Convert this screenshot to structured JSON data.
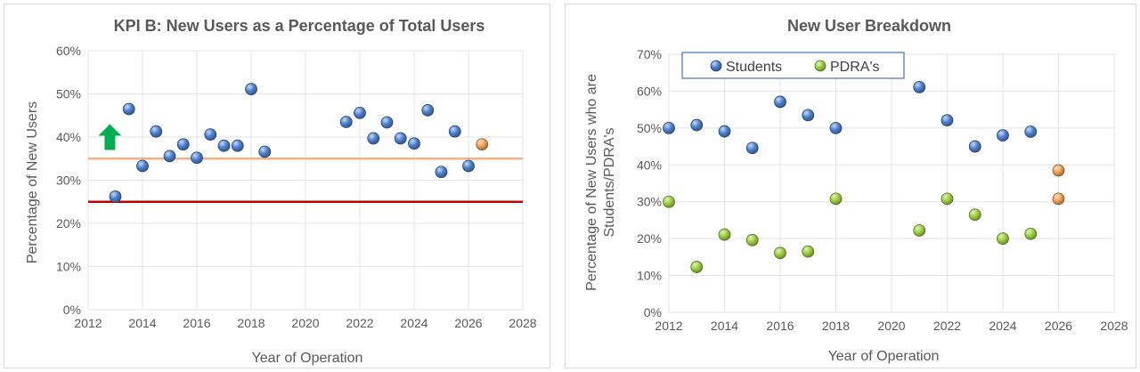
{
  "chart_data": [
    {
      "type": "scatter",
      "title": "KPI B: New Users as a Percentage of Total Users",
      "xlabel": "Year of Operation",
      "ylabel": "Percentage of New Users",
      "xlim": [
        2012,
        2028
      ],
      "ylim": [
        0,
        0.6
      ],
      "xticks": [
        "2012",
        "2014",
        "2016",
        "2018",
        "2020",
        "2022",
        "2024",
        "2026",
        "2028"
      ],
      "yticks": [
        "0%",
        "10%",
        "20%",
        "30%",
        "40%",
        "50%",
        "60%"
      ],
      "grid": true,
      "series": [
        {
          "color": "#4a7fd0",
          "points": [
            [
              2013.0,
              0.262
            ],
            [
              2013.5,
              0.465
            ],
            [
              2014.0,
              0.333
            ],
            [
              2014.5,
              0.413
            ],
            [
              2015.0,
              0.356
            ],
            [
              2015.5,
              0.383
            ],
            [
              2016.0,
              0.352
            ],
            [
              2016.5,
              0.406
            ],
            [
              2017.0,
              0.38
            ],
            [
              2017.5,
              0.38
            ],
            [
              2018.0,
              0.511
            ],
            [
              2018.5,
              0.366
            ],
            [
              2021.5,
              0.435
            ],
            [
              2022.0,
              0.456
            ],
            [
              2022.5,
              0.397
            ],
            [
              2023.0,
              0.434
            ],
            [
              2023.5,
              0.397
            ],
            [
              2024.0,
              0.385
            ],
            [
              2024.5,
              0.462
            ],
            [
              2025.0,
              0.319
            ],
            [
              2025.5,
              0.413
            ],
            [
              2026.0,
              0.333
            ]
          ]
        },
        {
          "color": "#f0a050",
          "points": [
            [
              2026.5,
              0.383
            ]
          ]
        }
      ],
      "reference_lines": [
        {
          "y": 0.35,
          "color": "#f4b183"
        },
        {
          "y": 0.25,
          "color": "#c00000"
        }
      ],
      "annotation": {
        "type": "up-arrow",
        "color": "#00b050",
        "x": 2012.8,
        "y_from": 0.37,
        "y_to": 0.43
      }
    },
    {
      "type": "scatter",
      "title": "New User Breakdown",
      "xlabel": "Year of Operation",
      "ylabel_lines": [
        "Percentage of New Users who are",
        "Students/PDRA's"
      ],
      "xlim": [
        2012,
        2028
      ],
      "ylim": [
        0,
        0.7
      ],
      "xticks": [
        "2012",
        "2014",
        "2016",
        "2018",
        "2020",
        "2022",
        "2024",
        "2026",
        "2028"
      ],
      "yticks": [
        "0%",
        "10%",
        "20%",
        "30%",
        "40%",
        "50%",
        "60%",
        "70%"
      ],
      "grid": true,
      "legend_position": "top-left",
      "series": [
        {
          "name": "Students",
          "color": "#4a7fd0",
          "points": [
            [
              2012,
              0.5
            ],
            [
              2013,
              0.508
            ],
            [
              2014,
              0.491
            ],
            [
              2015,
              0.446
            ],
            [
              2016,
              0.571
            ],
            [
              2017,
              0.535
            ],
            [
              2018,
              0.5
            ],
            [
              2021,
              0.611
            ],
            [
              2022,
              0.521
            ],
            [
              2023,
              0.45
            ],
            [
              2024,
              0.48
            ],
            [
              2025,
              0.49
            ]
          ]
        },
        {
          "name": "PDRA's",
          "color": "#9acd3c",
          "points": [
            [
              2012,
              0.3
            ],
            [
              2013,
              0.123
            ],
            [
              2014,
              0.211
            ],
            [
              2015,
              0.196
            ],
            [
              2016,
              0.161
            ],
            [
              2017,
              0.165
            ],
            [
              2018,
              0.308
            ],
            [
              2021,
              0.222
            ],
            [
              2022,
              0.308
            ],
            [
              2023,
              0.265
            ],
            [
              2024,
              0.2
            ],
            [
              2025,
              0.213
            ]
          ]
        },
        {
          "color": "#f0a050",
          "points": [
            [
              2026,
              0.385
            ],
            [
              2026,
              0.308
            ]
          ]
        }
      ]
    }
  ]
}
